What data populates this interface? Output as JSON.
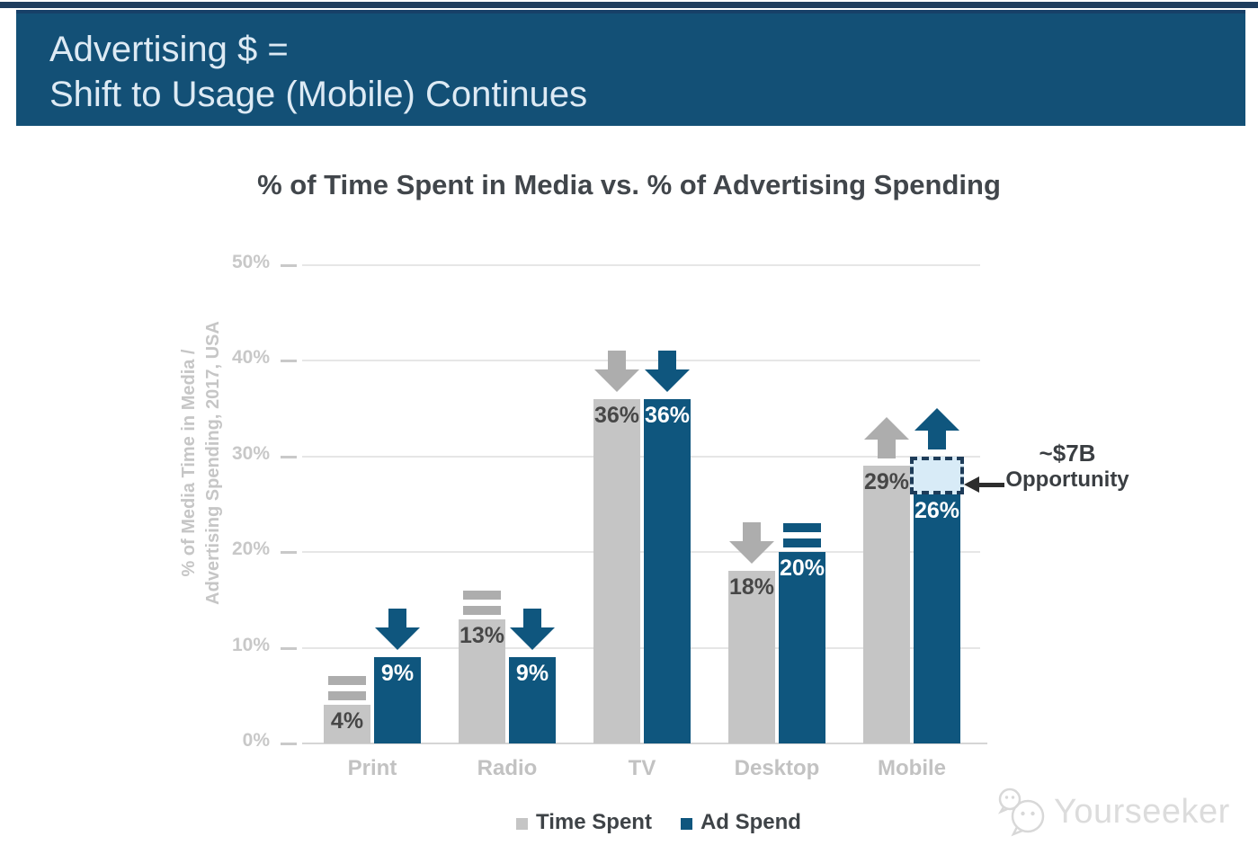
{
  "header": {
    "line1": "Advertising $ =",
    "line2": "Shift to Usage (Mobile) Continues"
  },
  "chart_data": {
    "type": "bar",
    "title": "% of Time Spent in Media vs. % of Advertising Spending",
    "ylabel_line1": "% of Media Time in Media /",
    "ylabel_line2": "Advertising Spending, 2017, USA",
    "categories": [
      "Print",
      "Radio",
      "TV",
      "Desktop",
      "Mobile"
    ],
    "series": [
      {
        "name": "Time Spent",
        "color": "#c5c5c5",
        "label_color": "#474747",
        "indicator_color": "#adadad",
        "values": [
          4,
          13,
          36,
          18,
          29
        ],
        "labels": [
          "4%",
          "13%",
          "36%",
          "18%",
          "29%"
        ],
        "indicators": [
          "equal",
          "equal",
          "down",
          "down",
          "up"
        ]
      },
      {
        "name": "Ad Spend",
        "color": "#0f567e",
        "label_color": "#ffffff",
        "indicator_color": "#0f567e",
        "values": [
          9,
          9,
          36,
          20,
          26
        ],
        "labels": [
          "9%",
          "9%",
          "36%",
          "20%",
          "26%"
        ],
        "indicators": [
          "down",
          "down",
          "down",
          "equal",
          "up"
        ]
      }
    ],
    "y_ticks": [
      "0%",
      "10%",
      "20%",
      "30%",
      "40%",
      "50%"
    ],
    "ylim": [
      0,
      50
    ],
    "grid": true,
    "legend_position": "bottom-center",
    "annotation": {
      "label_line1": "~$7B",
      "label_line2": "Opportunity",
      "points_to": "gap above Mobile Ad Spend bar",
      "box": {
        "category": "Mobile",
        "series": "Ad Spend",
        "from_pct": 26,
        "to_pct": 30,
        "fill": "#d8ebf7",
        "border": "#1e3c59"
      }
    }
  },
  "watermark": {
    "text": "Yourseeker",
    "icon": "wechat-icon"
  },
  "colors": {
    "header_bg": "#135076",
    "top_strip": "#1e3d5e",
    "time_spent_gray": "#c5c5c5",
    "ad_spend_blue": "#0f567e",
    "grid": "#e6e6e6",
    "axis_text": "#c8c8c8",
    "title_text": "#41464b",
    "annotation_text": "#3a3e42"
  }
}
